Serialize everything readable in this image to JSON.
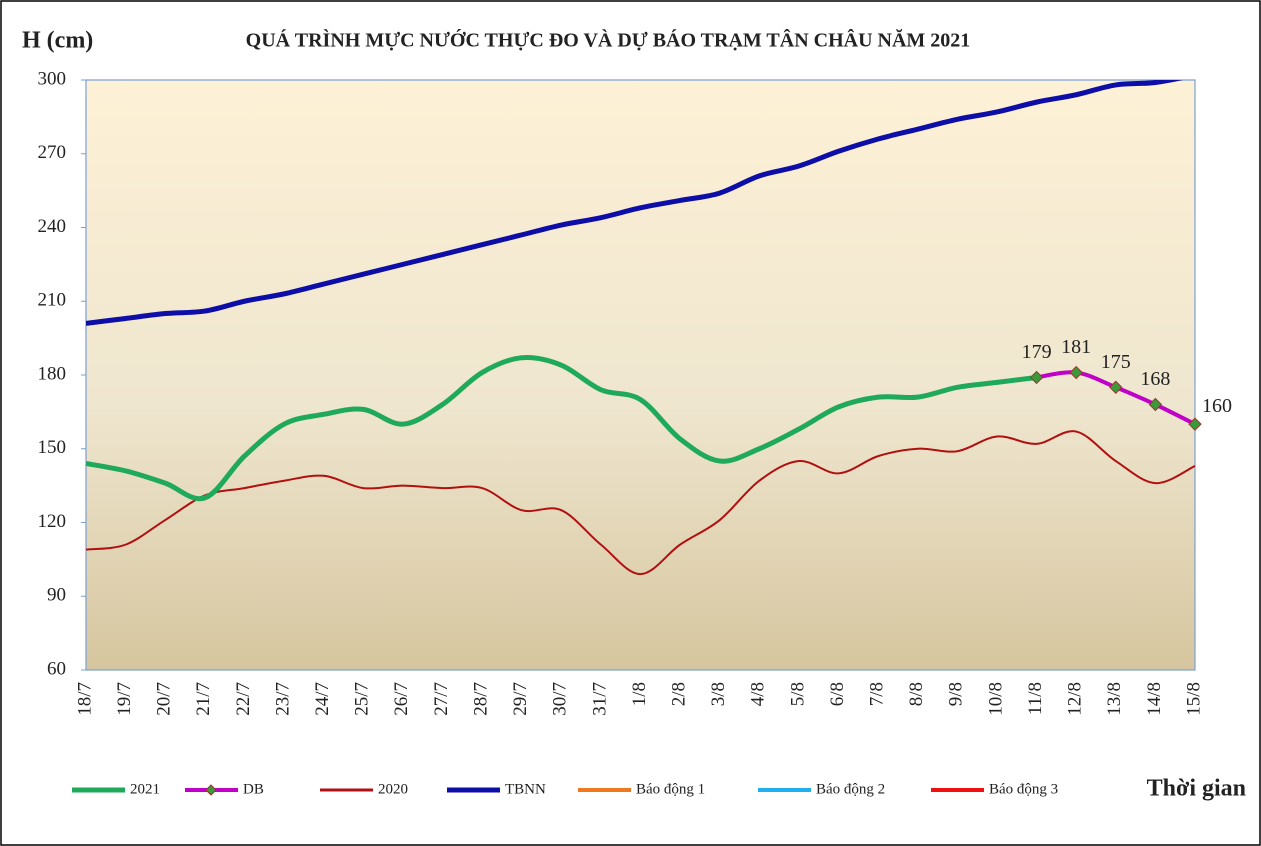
{
  "chart_data": {
    "type": "line",
    "title": "QUÁ TRÌNH MỰC NƯỚC THỰC ĐO VÀ DỰ BÁO TRẠM TÂN CHÂU NĂM 2021",
    "y_label": "H (cm)",
    "x_label": "Thời gian",
    "categories": [
      "18/7",
      "19/7",
      "20/7",
      "21/7",
      "22/7",
      "23/7",
      "24/7",
      "25/7",
      "26/7",
      "27/7",
      "28/7",
      "29/7",
      "30/7",
      "31/7",
      "1/8",
      "2/8",
      "3/8",
      "4/8",
      "5/8",
      "6/8",
      "7/8",
      "8/8",
      "9/8",
      "10/8",
      "11/8",
      "12/8",
      "13/8",
      "14/8",
      "15/8"
    ],
    "ylim": [
      60,
      300
    ],
    "yticks": [
      60,
      90,
      120,
      150,
      180,
      210,
      240,
      270,
      300
    ],
    "grid": false,
    "series": [
      {
        "name": "2021",
        "color": "#1fa95a",
        "values": [
          144,
          141,
          136,
          130,
          147,
          160,
          164,
          166,
          160,
          168,
          181,
          187,
          184,
          174,
          170,
          154,
          145,
          150,
          158,
          167,
          171,
          171,
          175,
          177,
          179,
          null,
          null,
          null,
          null
        ]
      },
      {
        "name": "DB",
        "color": "#c000c8",
        "marker_color": "#3a9a3a",
        "values": [
          null,
          null,
          null,
          null,
          null,
          null,
          null,
          null,
          null,
          null,
          null,
          null,
          null,
          null,
          null,
          null,
          null,
          null,
          null,
          null,
          null,
          null,
          null,
          null,
          179,
          181,
          175,
          168,
          160
        ]
      },
      {
        "name": "2020",
        "color": "#b01010",
        "values": [
          109,
          111,
          121,
          131,
          134,
          137,
          139,
          134,
          135,
          134,
          134,
          125,
          125,
          111,
          99,
          111,
          121,
          137,
          145,
          140,
          147,
          150,
          149,
          155,
          152,
          157,
          145,
          136,
          143
        ]
      },
      {
        "name": "TBNN",
        "color": "#0d0da8",
        "values": [
          201,
          203,
          205,
          206,
          210,
          213,
          217,
          221,
          225,
          229,
          233,
          237,
          241,
          244,
          248,
          251,
          254,
          261,
          265,
          271,
          276,
          280,
          284,
          287,
          291,
          294,
          298,
          299,
          302
        ]
      },
      {
        "name": "Báo động 1",
        "color": "#f07820",
        "values": [
          null,
          null,
          null,
          null,
          null,
          null,
          null,
          null,
          null,
          null,
          null,
          null,
          null,
          null,
          null,
          null,
          null,
          null,
          null,
          null,
          null,
          null,
          null,
          null,
          null,
          null,
          null,
          null,
          null
        ]
      },
      {
        "name": "Báo động 2",
        "color": "#20b0f0",
        "values": [
          null,
          null,
          null,
          null,
          null,
          null,
          null,
          null,
          null,
          null,
          null,
          null,
          null,
          null,
          null,
          null,
          null,
          null,
          null,
          null,
          null,
          null,
          null,
          null,
          null,
          null,
          null,
          null,
          null
        ]
      },
      {
        "name": "Báo động 3",
        "color": "#f01010",
        "values": [
          null,
          null,
          null,
          null,
          null,
          null,
          null,
          null,
          null,
          null,
          null,
          null,
          null,
          null,
          null,
          null,
          null,
          null,
          null,
          null,
          null,
          null,
          null,
          null,
          null,
          null,
          null,
          null,
          null
        ]
      }
    ]
  }
}
